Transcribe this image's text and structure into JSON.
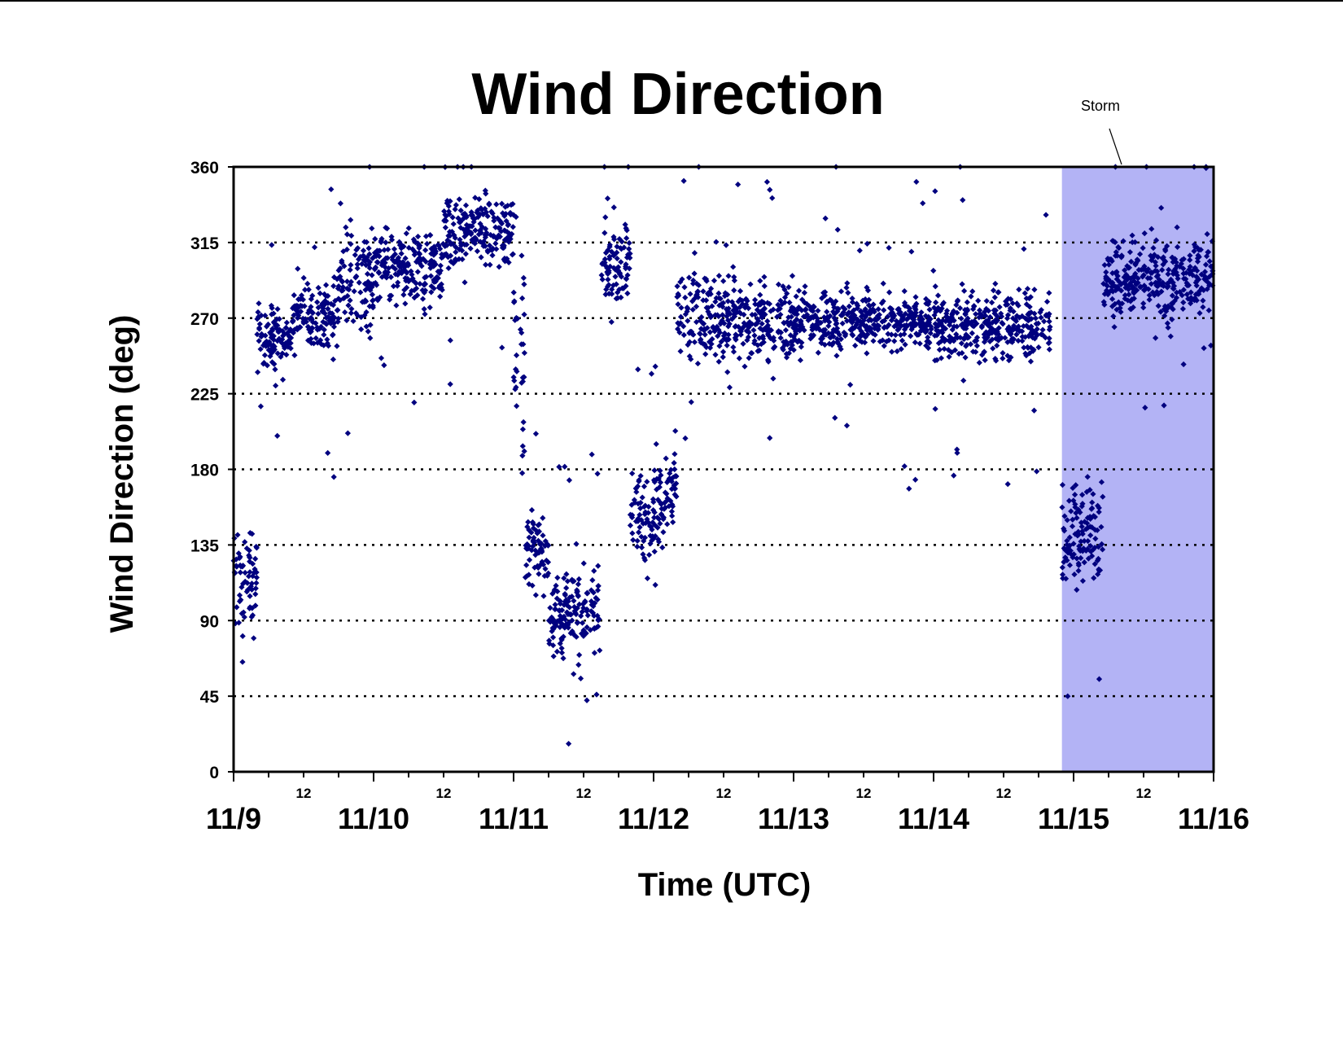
{
  "chart_data": {
    "type": "scatter",
    "title": "Wind Direction",
    "xlabel": "Time (UTC)",
    "ylabel": "Wind Direction (deg)",
    "ylim": [
      0,
      360
    ],
    "yticks": [
      0,
      45,
      90,
      135,
      180,
      225,
      270,
      315,
      360
    ],
    "ytick_labels": [
      "0",
      "45",
      "90",
      "135",
      "180",
      "225",
      "270",
      "315",
      "360"
    ],
    "xlim_days": [
      "11/9",
      "11/16"
    ],
    "xticks_major": [
      "11/9",
      "11/10",
      "11/11",
      "11/12",
      "11/13",
      "11/14",
      "11/15",
      "11/16"
    ],
    "xticks_minor_label": "12",
    "grid": "horizontal dotted",
    "marker": "diamond",
    "marker_color": "#00007f",
    "storm_shading_color": "#b3b3f5",
    "storm_annotation": "Storm",
    "storm_period": [
      "11/14 22:00",
      "11/16 00:00"
    ],
    "series": [
      {
        "segments": [
          {
            "start": "11/9 00:00",
            "end": "11/9 04:00",
            "center": 115,
            "spread": 22
          },
          {
            "start": "11/9 04:00",
            "end": "11/9 10:00",
            "center": 258,
            "spread": 14
          },
          {
            "start": "11/9 10:00",
            "end": "11/9 18:00",
            "center": 272,
            "spread": 18
          },
          {
            "start": "11/9 18:00",
            "end": "11/10 00:00",
            "center": 292,
            "spread": 25
          },
          {
            "start": "11/10 00:00",
            "end": "11/10 12:00",
            "center": 300,
            "spread": 20
          },
          {
            "start": "11/10 12:00",
            "end": "11/11 00:00",
            "center": 322,
            "spread": 18
          },
          {
            "start": "11/11 00:00",
            "end": "11/11 02:00",
            "center": 250,
            "spread": 50
          },
          {
            "start": "11/11 02:00",
            "end": "11/11 06:00",
            "center": 135,
            "spread": 20
          },
          {
            "start": "11/11 06:00",
            "end": "11/11 15:00",
            "center": 95,
            "spread": 22
          },
          {
            "start": "11/11 15:00",
            "end": "11/11 20:00",
            "center": 305,
            "spread": 22
          },
          {
            "start": "11/11 20:00",
            "end": "11/12 02:00",
            "center": 150,
            "spread": 25
          },
          {
            "start": "11/12 02:00",
            "end": "11/12 04:00",
            "center": 170,
            "spread": 22
          },
          {
            "start": "11/12 04:00",
            "end": "11/12 14:00",
            "center": 272,
            "spread": 22
          },
          {
            "start": "11/12 14:00",
            "end": "11/13 00:00",
            "center": 268,
            "spread": 20
          },
          {
            "start": "11/13 00:00",
            "end": "11/14 00:00",
            "center": 268,
            "spread": 14
          },
          {
            "start": "11/14 00:00",
            "end": "11/14 20:00",
            "center": 265,
            "spread": 16
          },
          {
            "start": "11/14 22:00",
            "end": "11/15 05:00",
            "center": 140,
            "spread": 25
          },
          {
            "start": "11/15 05:00",
            "end": "11/16 00:00",
            "center": 295,
            "spread": 20
          }
        ]
      }
    ]
  }
}
